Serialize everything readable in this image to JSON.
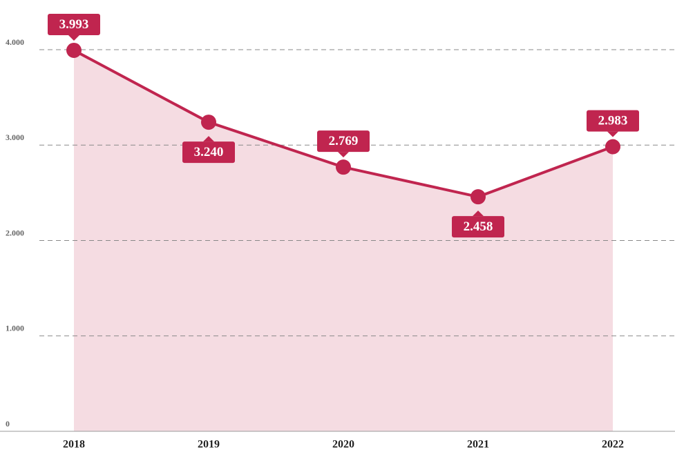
{
  "chart_data": {
    "type": "line",
    "categories": [
      "2018",
      "2019",
      "2020",
      "2021",
      "2022"
    ],
    "series": [
      {
        "color": "#c0254f",
        "values": [
          3993,
          3240,
          2769,
          2458,
          2983
        ],
        "value_labels": [
          "3.993",
          "3.240",
          "2.769",
          "2.458",
          "2.983"
        ]
      }
    ],
    "area_color": "#f5dce2",
    "ylim": [
      0,
      4000
    ],
    "yticks": [
      0,
      {
        "value": 1000,
        "label": "1.000"
      },
      {
        "value": 2000,
        "label": "2.000"
      },
      {
        "value": 3000,
        "label": "3.000"
      },
      {
        "value": 4000,
        "label": "4.000"
      }
    ],
    "grid": true
  }
}
